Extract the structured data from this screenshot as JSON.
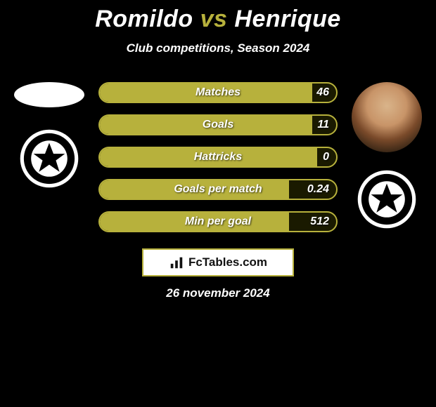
{
  "title": {
    "player1": "Romildo",
    "vs": "vs",
    "player2": "Henrique"
  },
  "subtitle": "Club competitions, Season 2024",
  "colors": {
    "accent": "#b7b13c",
    "background": "#000000",
    "text": "#ffffff",
    "card_bg": "#ffffff",
    "card_text": "#111111"
  },
  "stats": [
    {
      "label": "Matches",
      "value": "46",
      "fill_pct": 90
    },
    {
      "label": "Goals",
      "value": "11",
      "fill_pct": 90
    },
    {
      "label": "Hattricks",
      "value": "0",
      "fill_pct": 92
    },
    {
      "label": "Goals per match",
      "value": "0.24",
      "fill_pct": 80
    },
    {
      "label": "Min per goal",
      "value": "512",
      "fill_pct": 80
    }
  ],
  "branding": {
    "name": "FcTables.com"
  },
  "date": "26 november 2024"
}
